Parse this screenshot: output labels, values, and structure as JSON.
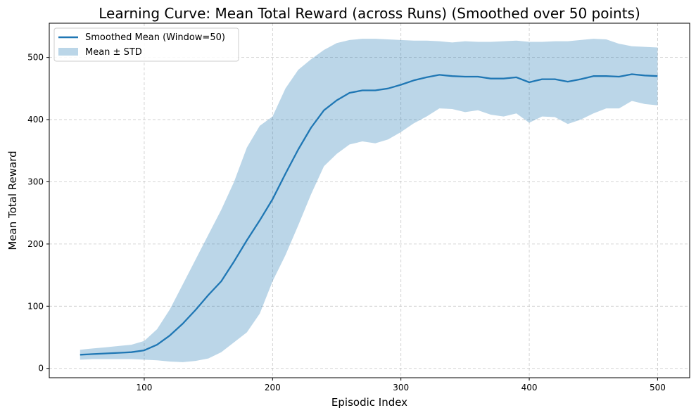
{
  "chart_data": {
    "type": "line",
    "title": "Learning Curve: Mean Total Reward (across Runs) (Smoothed over 50 points)",
    "xlabel": "Episodic Index",
    "ylabel": "Mean Total Reward",
    "xlim": [
      26,
      525
    ],
    "ylim": [
      -15,
      555
    ],
    "xticks": [
      100,
      200,
      300,
      400,
      500
    ],
    "yticks": [
      0,
      100,
      200,
      300,
      400,
      500
    ],
    "grid": true,
    "legend_position": "top-left",
    "series": [
      {
        "name": "Smoothed Mean (Window=50)",
        "color": "#1f77b4",
        "x": [
          50,
          60,
          70,
          80,
          90,
          100,
          110,
          120,
          130,
          140,
          150,
          160,
          170,
          180,
          190,
          200,
          210,
          220,
          230,
          240,
          250,
          260,
          270,
          280,
          290,
          300,
          310,
          320,
          330,
          340,
          350,
          360,
          370,
          380,
          390,
          400,
          410,
          420,
          430,
          440,
          450,
          460,
          470,
          480,
          490,
          500
        ],
        "y": [
          22,
          23,
          24,
          25,
          26,
          29,
          38,
          53,
          72,
          94,
          118,
          140,
          172,
          206,
          238,
          272,
          313,
          352,
          387,
          415,
          431,
          443,
          447,
          447,
          450,
          456,
          463,
          468,
          472,
          470,
          469,
          469,
          466,
          466,
          468,
          460,
          465,
          465,
          461,
          465,
          470,
          470,
          469,
          473,
          471,
          470
        ]
      },
      {
        "name": "Mean ± STD",
        "color": "#1f77b4",
        "opacity": 0.3,
        "x": [
          50,
          60,
          70,
          80,
          90,
          100,
          110,
          120,
          130,
          140,
          150,
          160,
          170,
          180,
          190,
          200,
          210,
          220,
          230,
          240,
          250,
          260,
          270,
          280,
          290,
          300,
          310,
          320,
          330,
          340,
          350,
          360,
          370,
          380,
          390,
          400,
          410,
          420,
          430,
          440,
          450,
          460,
          470,
          480,
          490,
          500
        ],
        "lower": [
          14,
          15,
          15,
          15,
          15,
          14,
          13,
          11,
          10,
          12,
          16,
          26,
          42,
          58,
          88,
          140,
          182,
          230,
          280,
          325,
          345,
          360,
          365,
          362,
          368,
          380,
          394,
          405,
          418,
          417,
          412,
          415,
          408,
          405,
          410,
          395,
          405,
          404,
          393,
          400,
          410,
          418,
          418,
          430,
          425,
          423
        ],
        "upper": [
          30,
          32,
          34,
          36,
          38,
          44,
          63,
          95,
          135,
          175,
          215,
          255,
          300,
          355,
          390,
          405,
          450,
          480,
          497,
          512,
          523,
          528,
          530,
          530,
          529,
          528,
          527,
          527,
          526,
          524,
          526,
          525,
          525,
          526,
          527,
          525,
          525,
          526,
          526,
          528,
          530,
          529,
          522,
          518,
          517,
          516
        ]
      }
    ]
  }
}
